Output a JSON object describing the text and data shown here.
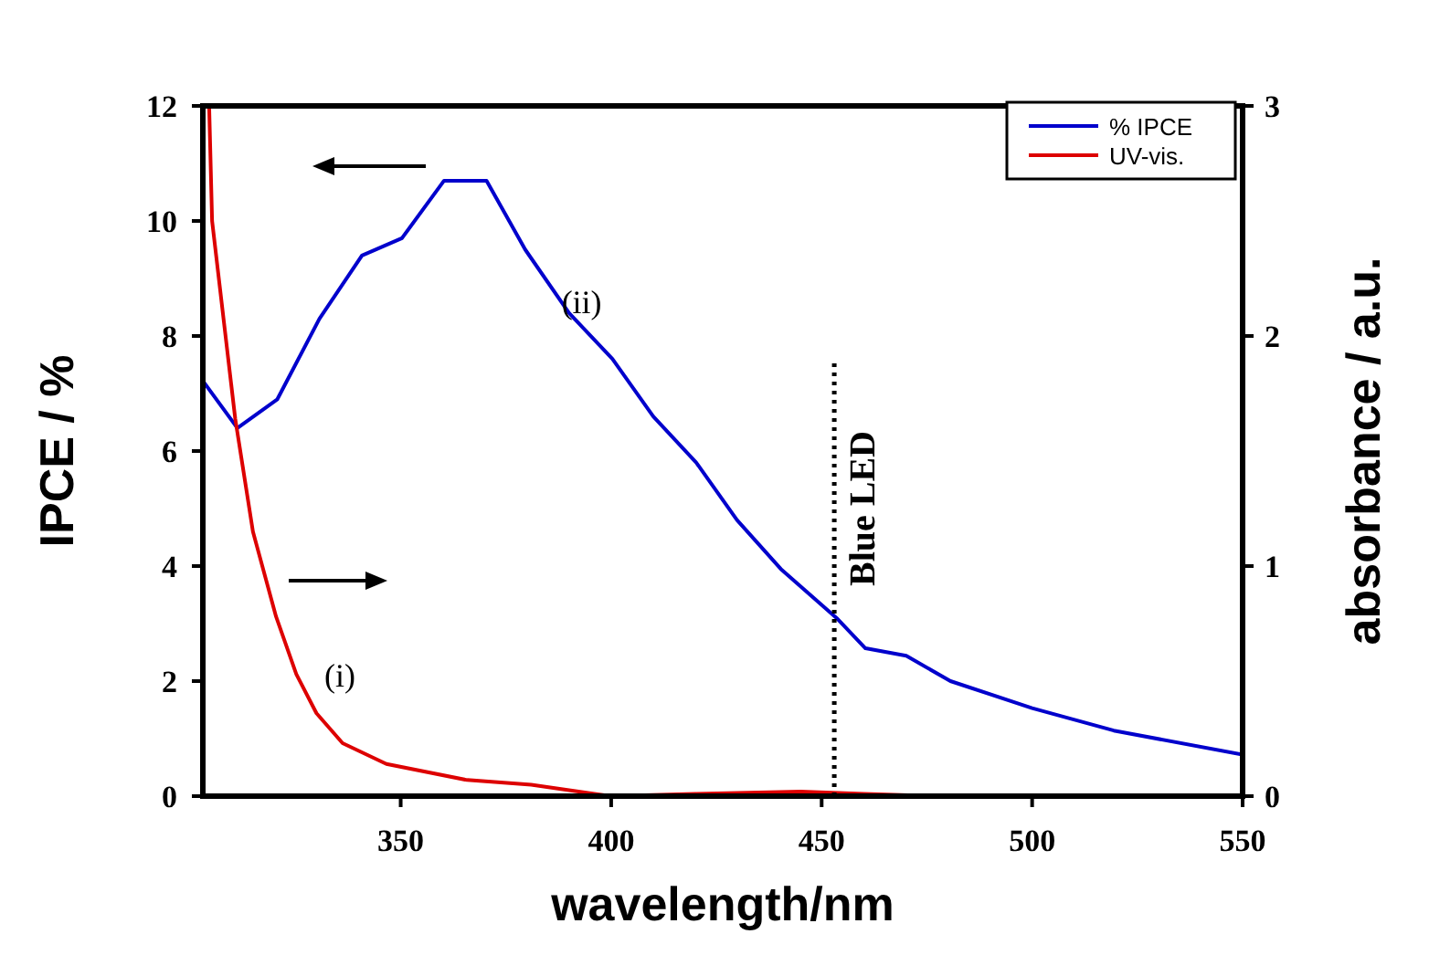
{
  "chart_data": {
    "type": "line",
    "xlabel": "wavelength/nm",
    "ylabel": "IPCE / %",
    "y2label": "absorbance / a.u.",
    "xlim": [
      303,
      550
    ],
    "xticks": [
      350,
      400,
      450,
      500,
      550
    ],
    "ylim": [
      0,
      12
    ],
    "yticks": [
      0,
      2,
      4,
      6,
      8,
      10,
      12
    ],
    "y2lim": [
      0,
      3
    ],
    "y2ticks": [
      0,
      1,
      2,
      3
    ],
    "grid": false,
    "legend": "top right",
    "marker": "none",
    "line_style": "solid",
    "series": [
      {
        "name": "% IPCE",
        "color": "#0000cc",
        "x": [
          303.2,
          311.2,
          320.7,
          330.7,
          340.8,
          350.3,
          360.3,
          370.4,
          379.6,
          390,
          400.3,
          410,
          420.2,
          429.9,
          440.3,
          453.5,
          460.4,
          470.1,
          480.6,
          500,
          519.4,
          550
        ],
        "values": [
          7.2,
          6.4,
          6.9,
          8.3,
          9.4,
          9.7,
          10.7,
          10.7,
          9.5,
          8.4,
          7.6,
          6.6,
          5.8,
          4.8,
          3.95,
          3.1,
          2.57,
          2.44,
          2.0,
          1.53,
          1.14,
          0.72
        ]
      },
      {
        "name": "UV-vis.",
        "color": "#dd0000",
        "axis": "y2",
        "x": [
          304.5,
          305.2,
          310.7,
          314.9,
          320.4,
          325.2,
          330,
          336.2,
          346.6,
          365.8,
          381,
          396,
          400,
          420,
          445,
          460,
          478
        ],
        "values": [
          3.0,
          2.5,
          1.64,
          1.15,
          0.78,
          0.53,
          0.36,
          0.23,
          0.14,
          0.07,
          0.05,
          0.01,
          0,
          0.01,
          0.02,
          0.01,
          0
        ]
      }
    ],
    "ref_lines": [
      {
        "axis": "x",
        "value": 453,
        "label": "Blue LED",
        "line_style": "dotted",
        "color": "#000000"
      }
    ],
    "annotations": [
      {
        "text": "(ii)",
        "x": 393,
        "y": 8.4
      },
      "(i)"
    ]
  }
}
